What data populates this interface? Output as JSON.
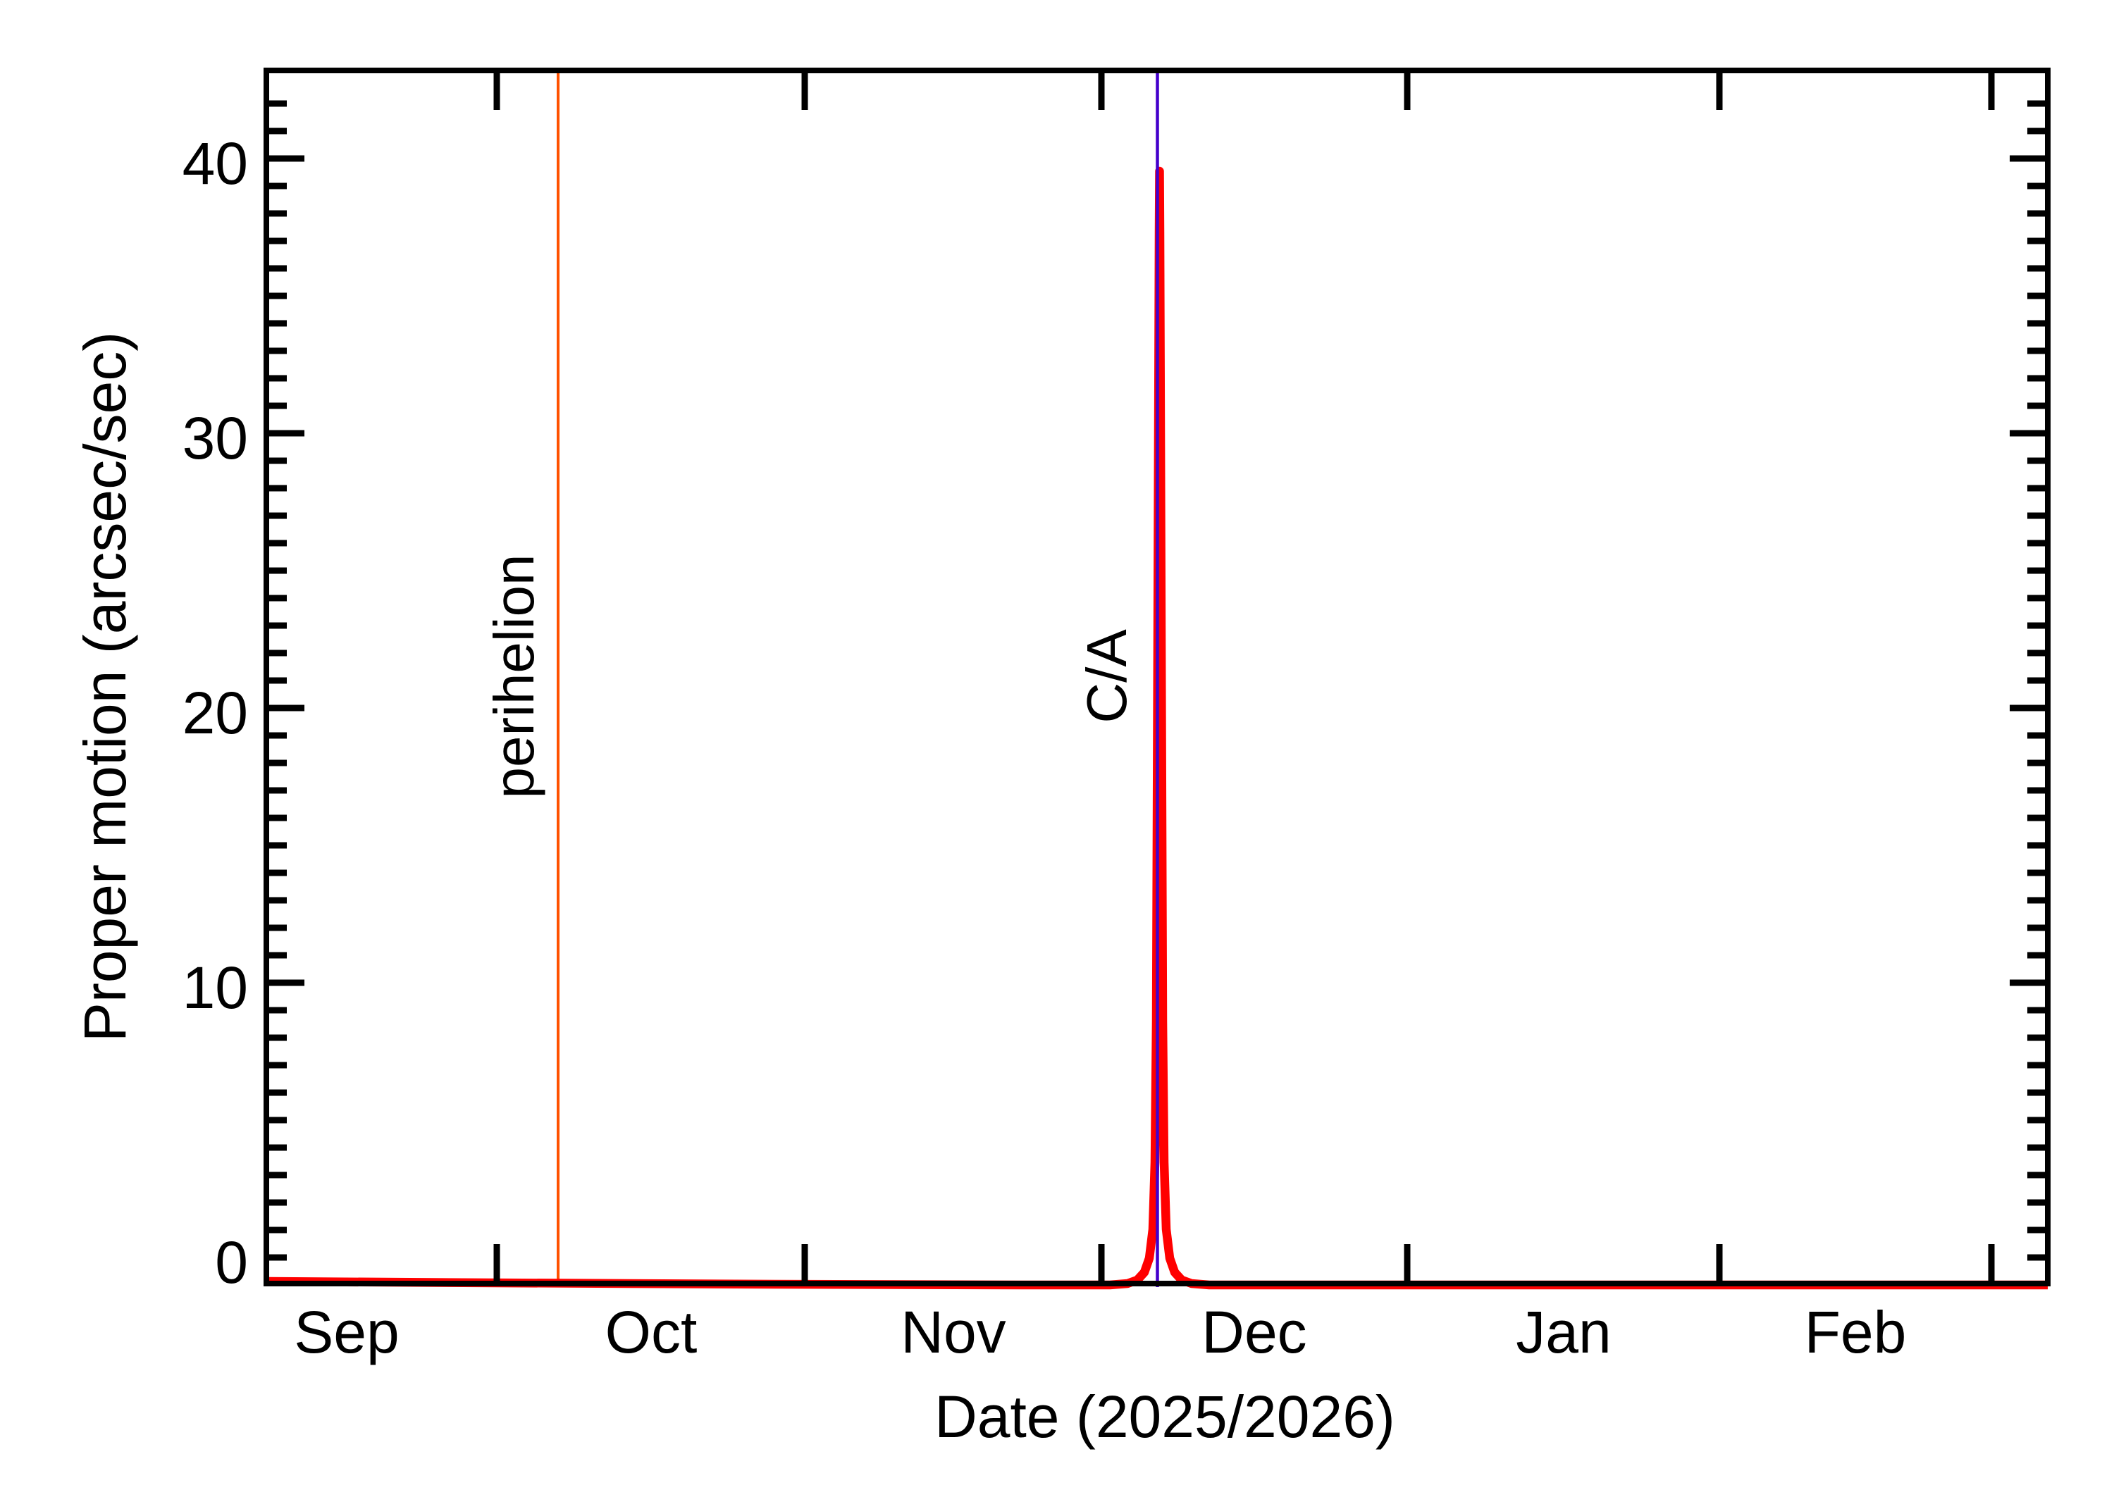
{
  "figure": {
    "background": "#ffffff",
    "curve_color": "#ff0000",
    "axis_color": "#000000",
    "x_axis": {
      "label": "Date (2025/2026)",
      "tick_labels": [
        "Sep",
        "Oct",
        "Nov",
        "Dec",
        "Jan",
        "Feb"
      ]
    },
    "y_axis": {
      "label": "Proper motion (arcsec/sec)",
      "tick_labels": [
        "0",
        "10",
        "20",
        "30",
        "40"
      ]
    },
    "annotations": {
      "perihelion": {
        "label": "perihelion",
        "color": "#ff5100"
      },
      "close_approach": {
        "label": "C/A",
        "color": "#4400cc"
      }
    }
  },
  "chart_data": {
    "type": "line",
    "title": "",
    "xlabel": "Date (2025/2026)",
    "ylabel": "Proper motion (arcsec/sec)",
    "x_tick_labels": [
      "Sep",
      "Oct",
      "Nov",
      "Dec",
      "Jan",
      "Feb"
    ],
    "y_ticks": [
      0,
      10,
      20,
      30,
      40
    ],
    "ylim": [
      -1,
      43
    ],
    "x_range_approx": [
      "2025-09-08",
      "2026-03-06"
    ],
    "grid": false,
    "legend": "none",
    "series": [
      {
        "name": "proper motion",
        "color": "#ff0000",
        "points": [
          {
            "date": "2025-09-08",
            "value": 0.05
          },
          {
            "date": "2025-10-01",
            "value": 0.05
          },
          {
            "date": "2025-10-07",
            "value": 0.06
          },
          {
            "date": "2025-11-01",
            "value": 0.08
          },
          {
            "date": "2025-11-20",
            "value": 0.15
          },
          {
            "date": "2025-12-01",
            "value": 0.4
          },
          {
            "date": "2025-12-03",
            "value": 1.0
          },
          {
            "date": "2025-12-04",
            "value": 2.5
          },
          {
            "date": "2025-12-05",
            "value": 10
          },
          {
            "date": "2025-12-06",
            "value": 39.6
          },
          {
            "date": "2025-12-07",
            "value": 10
          },
          {
            "date": "2025-12-08",
            "value": 2.5
          },
          {
            "date": "2025-12-09",
            "value": 1.0
          },
          {
            "date": "2025-12-11",
            "value": 0.4
          },
          {
            "date": "2025-12-20",
            "value": 0.15
          },
          {
            "date": "2026-01-01",
            "value": 0.08
          },
          {
            "date": "2026-02-01",
            "value": 0.05
          },
          {
            "date": "2026-03-06",
            "value": 0.04
          }
        ]
      }
    ],
    "peak": {
      "date_approx": "2025-12-06",
      "value": 39.6
    },
    "vlines": [
      {
        "label": "perihelion",
        "date_approx": "2025-10-07",
        "color": "#ff5100"
      },
      {
        "label": "C/A",
        "date_approx": "2025-12-06",
        "color": "#4400cc"
      }
    ],
    "display_note": "flat baseline is drawn just below the 0 tick; y-axis has minor ticks every 1 unit, x-axis major ticks at month boundaries"
  }
}
